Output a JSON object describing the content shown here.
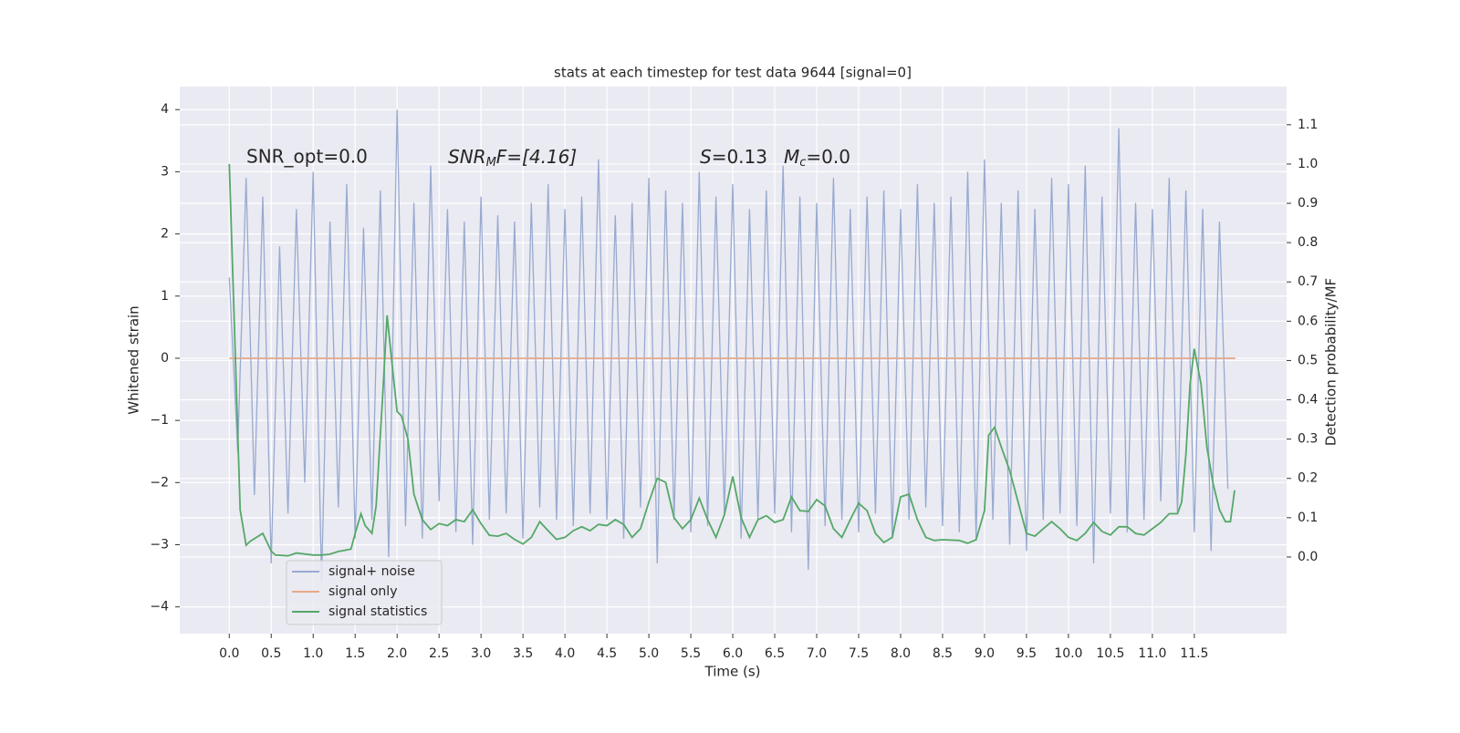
{
  "chart_data": {
    "type": "line",
    "title": "stats at each timestep for test data 9644 [signal=0]",
    "xlabel": "Time (s)",
    "ylabel": "Whitened strain",
    "y2label": "Detection probability/MF",
    "annotations": [
      "SNR_opt=0.0",
      [
        "SNR",
        "M",
        "F=[4.16]"
      ],
      [
        "S",
        "=0.13",
        "M",
        "c",
        "=0.0"
      ]
    ],
    "xlim": [
      -0.59,
      12.6
    ],
    "ylim": [
      -4.43,
      4.37
    ],
    "y2lim": [
      -0.195,
      1.197
    ],
    "xticks": [
      {
        "value": 0,
        "label": "0.0"
      },
      {
        "value": 0.5,
        "label": "0.5"
      },
      {
        "value": 1,
        "label": "1.0"
      },
      {
        "value": 1.5,
        "label": "1.5"
      },
      {
        "value": 2,
        "label": "2.0"
      },
      {
        "value": 2.5,
        "label": "2.5"
      },
      {
        "value": 3,
        "label": "3.0"
      },
      {
        "value": 3.5,
        "label": "3.5"
      },
      {
        "value": 4,
        "label": "4.0"
      },
      {
        "value": 4.5,
        "label": "4.5"
      },
      {
        "value": 5,
        "label": "5.0"
      },
      {
        "value": 5.5,
        "label": "5.5"
      },
      {
        "value": 6,
        "label": "6.0"
      },
      {
        "value": 6.5,
        "label": "6.5"
      },
      {
        "value": 7,
        "label": "7.0"
      },
      {
        "value": 7.5,
        "label": "7.5"
      },
      {
        "value": 8,
        "label": "8.0"
      },
      {
        "value": 8.5,
        "label": "8.5"
      },
      {
        "value": 9,
        "label": "9.0"
      },
      {
        "value": 9.5,
        "label": "9.5"
      },
      {
        "value": 10,
        "label": "10.0"
      },
      {
        "value": 10.5,
        "label": "10.5"
      },
      {
        "value": 11,
        "label": "11.0"
      },
      {
        "value": 11.5,
        "label": "11.5"
      }
    ],
    "yticks": [
      {
        "value": -4,
        "label": "−4"
      },
      {
        "value": -3,
        "label": "−3"
      },
      {
        "value": -2,
        "label": "−2"
      },
      {
        "value": -1,
        "label": "−1"
      },
      0,
      1,
      2,
      3,
      4
    ],
    "y2ticks": [
      {
        "value": 0,
        "label": "0.0"
      },
      {
        "value": 0.1,
        "label": "0.1"
      },
      {
        "value": 0.2,
        "label": "0.2"
      },
      {
        "value": 0.3,
        "label": "0.3"
      },
      {
        "value": 0.4,
        "label": "0.4"
      },
      {
        "value": 0.5,
        "label": "0.5"
      },
      {
        "value": 0.6,
        "label": "0.6"
      },
      {
        "value": 0.7,
        "label": "0.7"
      },
      {
        "value": 0.8,
        "label": "0.8"
      },
      {
        "value": 0.9,
        "label": "0.9"
      },
      {
        "value": 1,
        "label": "1.0"
      },
      {
        "value": 1.1,
        "label": "1.1"
      }
    ],
    "grid": true,
    "legend": "lower left",
    "series": [
      {
        "name": "signal+ noise",
        "color": "#98aad0",
        "x": [
          0,
          0.1,
          0.2,
          0.3,
          0.4,
          0.5,
          0.6,
          0.7,
          0.8,
          0.9,
          1,
          1.1,
          1.2,
          1.3,
          1.4,
          1.5,
          1.6,
          1.7,
          1.8,
          1.9,
          2,
          2.1,
          2.2,
          2.3,
          2.4,
          2.5,
          2.6,
          2.7,
          2.8,
          2.9,
          3,
          3.1,
          3.2,
          3.3,
          3.4,
          3.5,
          3.6,
          3.7,
          3.8,
          3.9,
          4,
          4.1,
          4.2,
          4.3,
          4.4,
          4.5,
          4.6,
          4.7,
          4.8,
          4.9,
          5,
          5.1,
          5.2,
          5.3,
          5.4,
          5.5,
          5.6,
          5.7,
          5.8,
          5.9,
          6,
          6.1,
          6.2,
          6.3,
          6.4,
          6.5,
          6.6,
          6.7,
          6.8,
          6.9,
          7,
          7.1,
          7.2,
          7.3,
          7.4,
          7.5,
          7.6,
          7.7,
          7.8,
          7.9,
          8,
          8.1,
          8.2,
          8.3,
          8.4,
          8.5,
          8.6,
          8.7,
          8.8,
          8.9,
          9,
          9.1,
          9.2,
          9.3,
          9.4,
          9.5,
          9.6,
          9.7,
          9.8,
          9.9,
          10,
          10.1,
          10.2,
          10.3,
          10.4,
          10.5,
          10.6,
          10.7,
          10.8,
          10.9,
          11,
          11.1,
          11.2,
          11.3,
          11.4,
          11.5,
          11.6,
          11.7,
          11.8,
          11.9
        ],
        "values": [
          1.3,
          -1.5,
          2.9,
          -2.2,
          2.6,
          -3.3,
          1.8,
          -2.5,
          2.4,
          -2.0,
          3.0,
          -3.6,
          2.2,
          -2.4,
          2.8,
          -2.9,
          2.1,
          -2.6,
          2.7,
          -3.2,
          4.0,
          -2.7,
          2.5,
          -2.9,
          3.1,
          -2.3,
          2.4,
          -2.8,
          2.2,
          -3.0,
          2.6,
          -2.6,
          2.3,
          -2.5,
          2.2,
          -2.9,
          2.5,
          -2.4,
          2.8,
          -2.6,
          2.4,
          -2.7,
          2.6,
          -2.5,
          3.2,
          -2.6,
          2.3,
          -2.9,
          2.5,
          -2.4,
          2.9,
          -3.3,
          2.7,
          -2.6,
          2.5,
          -2.8,
          3.0,
          -2.7,
          2.6,
          -2.5,
          2.8,
          -2.9,
          2.4,
          -2.6,
          2.7,
          -2.5,
          3.1,
          -2.8,
          2.6,
          -3.4,
          2.5,
          -2.7,
          2.9,
          -2.6,
          2.4,
          -2.8,
          2.6,
          -2.5,
          2.7,
          -2.9,
          2.4,
          -2.6,
          2.8,
          -2.4,
          2.5,
          -2.7,
          2.6,
          -2.8,
          3.0,
          -2.9,
          3.2,
          -2.6,
          2.5,
          -3.0,
          2.7,
          -3.1,
          2.4,
          -2.6,
          2.9,
          -2.5,
          2.8,
          -2.7,
          3.1,
          -3.3,
          2.6,
          -2.5,
          3.7,
          -2.8,
          2.5,
          -2.6,
          2.4,
          -2.3,
          2.9,
          -2.5,
          2.7,
          -2.8,
          2.4,
          -3.1,
          2.2,
          -2.1
        ]
      },
      {
        "name": "signal only",
        "color": "#e8a889",
        "x": [
          0,
          11.99
        ],
        "values": [
          0,
          0
        ]
      },
      {
        "name": "signal statistics",
        "color": "#55a868",
        "axis": "y2",
        "x": [
          0,
          0.13,
          0.2,
          0.25,
          0.4,
          0.5,
          0.55,
          0.7,
          0.8,
          1,
          1.1,
          1.2,
          1.3,
          1.45,
          1.5,
          1.57,
          1.62,
          1.7,
          1.75,
          1.83,
          1.88,
          1.95,
          2,
          2.05,
          2.13,
          2.2,
          2.3,
          2.4,
          2.5,
          2.6,
          2.7,
          2.8,
          2.9,
          3,
          3.1,
          3.2,
          3.3,
          3.4,
          3.5,
          3.6,
          3.7,
          3.8,
          3.9,
          4,
          4.1,
          4.2,
          4.3,
          4.4,
          4.5,
          4.6,
          4.7,
          4.8,
          4.9,
          5,
          5.1,
          5.2,
          5.3,
          5.4,
          5.5,
          5.6,
          5.7,
          5.8,
          5.9,
          6,
          6.1,
          6.2,
          6.3,
          6.4,
          6.5,
          6.6,
          6.7,
          6.8,
          6.9,
          7,
          7.1,
          7.2,
          7.3,
          7.4,
          7.5,
          7.6,
          7.7,
          7.8,
          7.9,
          8,
          8.1,
          8.2,
          8.3,
          8.4,
          8.5,
          8.7,
          8.8,
          8.9,
          9,
          9.05,
          9.12,
          9.2,
          9.3,
          9.4,
          9.5,
          9.6,
          9.7,
          9.8,
          9.9,
          10,
          10.1,
          10.2,
          10.3,
          10.4,
          10.5,
          10.6,
          10.7,
          10.8,
          10.9,
          11,
          11.1,
          11.2,
          11.3,
          11.35,
          11.4,
          11.45,
          11.5,
          11.58,
          11.65,
          11.72,
          11.8,
          11.87,
          11.93,
          11.98
        ],
        "values": [
          1.0,
          0.12,
          0.03,
          0.04,
          0.06,
          0.015,
          0.005,
          0.003,
          0.01,
          0.005,
          0.005,
          0.007,
          0.014,
          0.02,
          0.06,
          0.11,
          0.08,
          0.06,
          0.13,
          0.42,
          0.615,
          0.47,
          0.37,
          0.36,
          0.3,
          0.16,
          0.095,
          0.07,
          0.085,
          0.08,
          0.095,
          0.09,
          0.12,
          0.085,
          0.055,
          0.053,
          0.06,
          0.045,
          0.033,
          0.05,
          0.09,
          0.067,
          0.045,
          0.05,
          0.067,
          0.077,
          0.067,
          0.083,
          0.08,
          0.095,
          0.083,
          0.05,
          0.072,
          0.14,
          0.2,
          0.19,
          0.1,
          0.072,
          0.095,
          0.15,
          0.095,
          0.05,
          0.107,
          0.205,
          0.1,
          0.05,
          0.095,
          0.105,
          0.088,
          0.095,
          0.153,
          0.118,
          0.116,
          0.146,
          0.13,
          0.072,
          0.05,
          0.095,
          0.137,
          0.118,
          0.06,
          0.037,
          0.05,
          0.153,
          0.16,
          0.095,
          0.05,
          0.042,
          0.044,
          0.042,
          0.035,
          0.044,
          0.118,
          0.31,
          0.33,
          0.28,
          0.22,
          0.14,
          0.06,
          0.053,
          0.072,
          0.09,
          0.072,
          0.05,
          0.042,
          0.06,
          0.088,
          0.065,
          0.056,
          0.077,
          0.077,
          0.06,
          0.056,
          0.072,
          0.088,
          0.11,
          0.11,
          0.14,
          0.26,
          0.44,
          0.53,
          0.44,
          0.28,
          0.19,
          0.12,
          0.09,
          0.09,
          0.17
        ]
      }
    ]
  }
}
